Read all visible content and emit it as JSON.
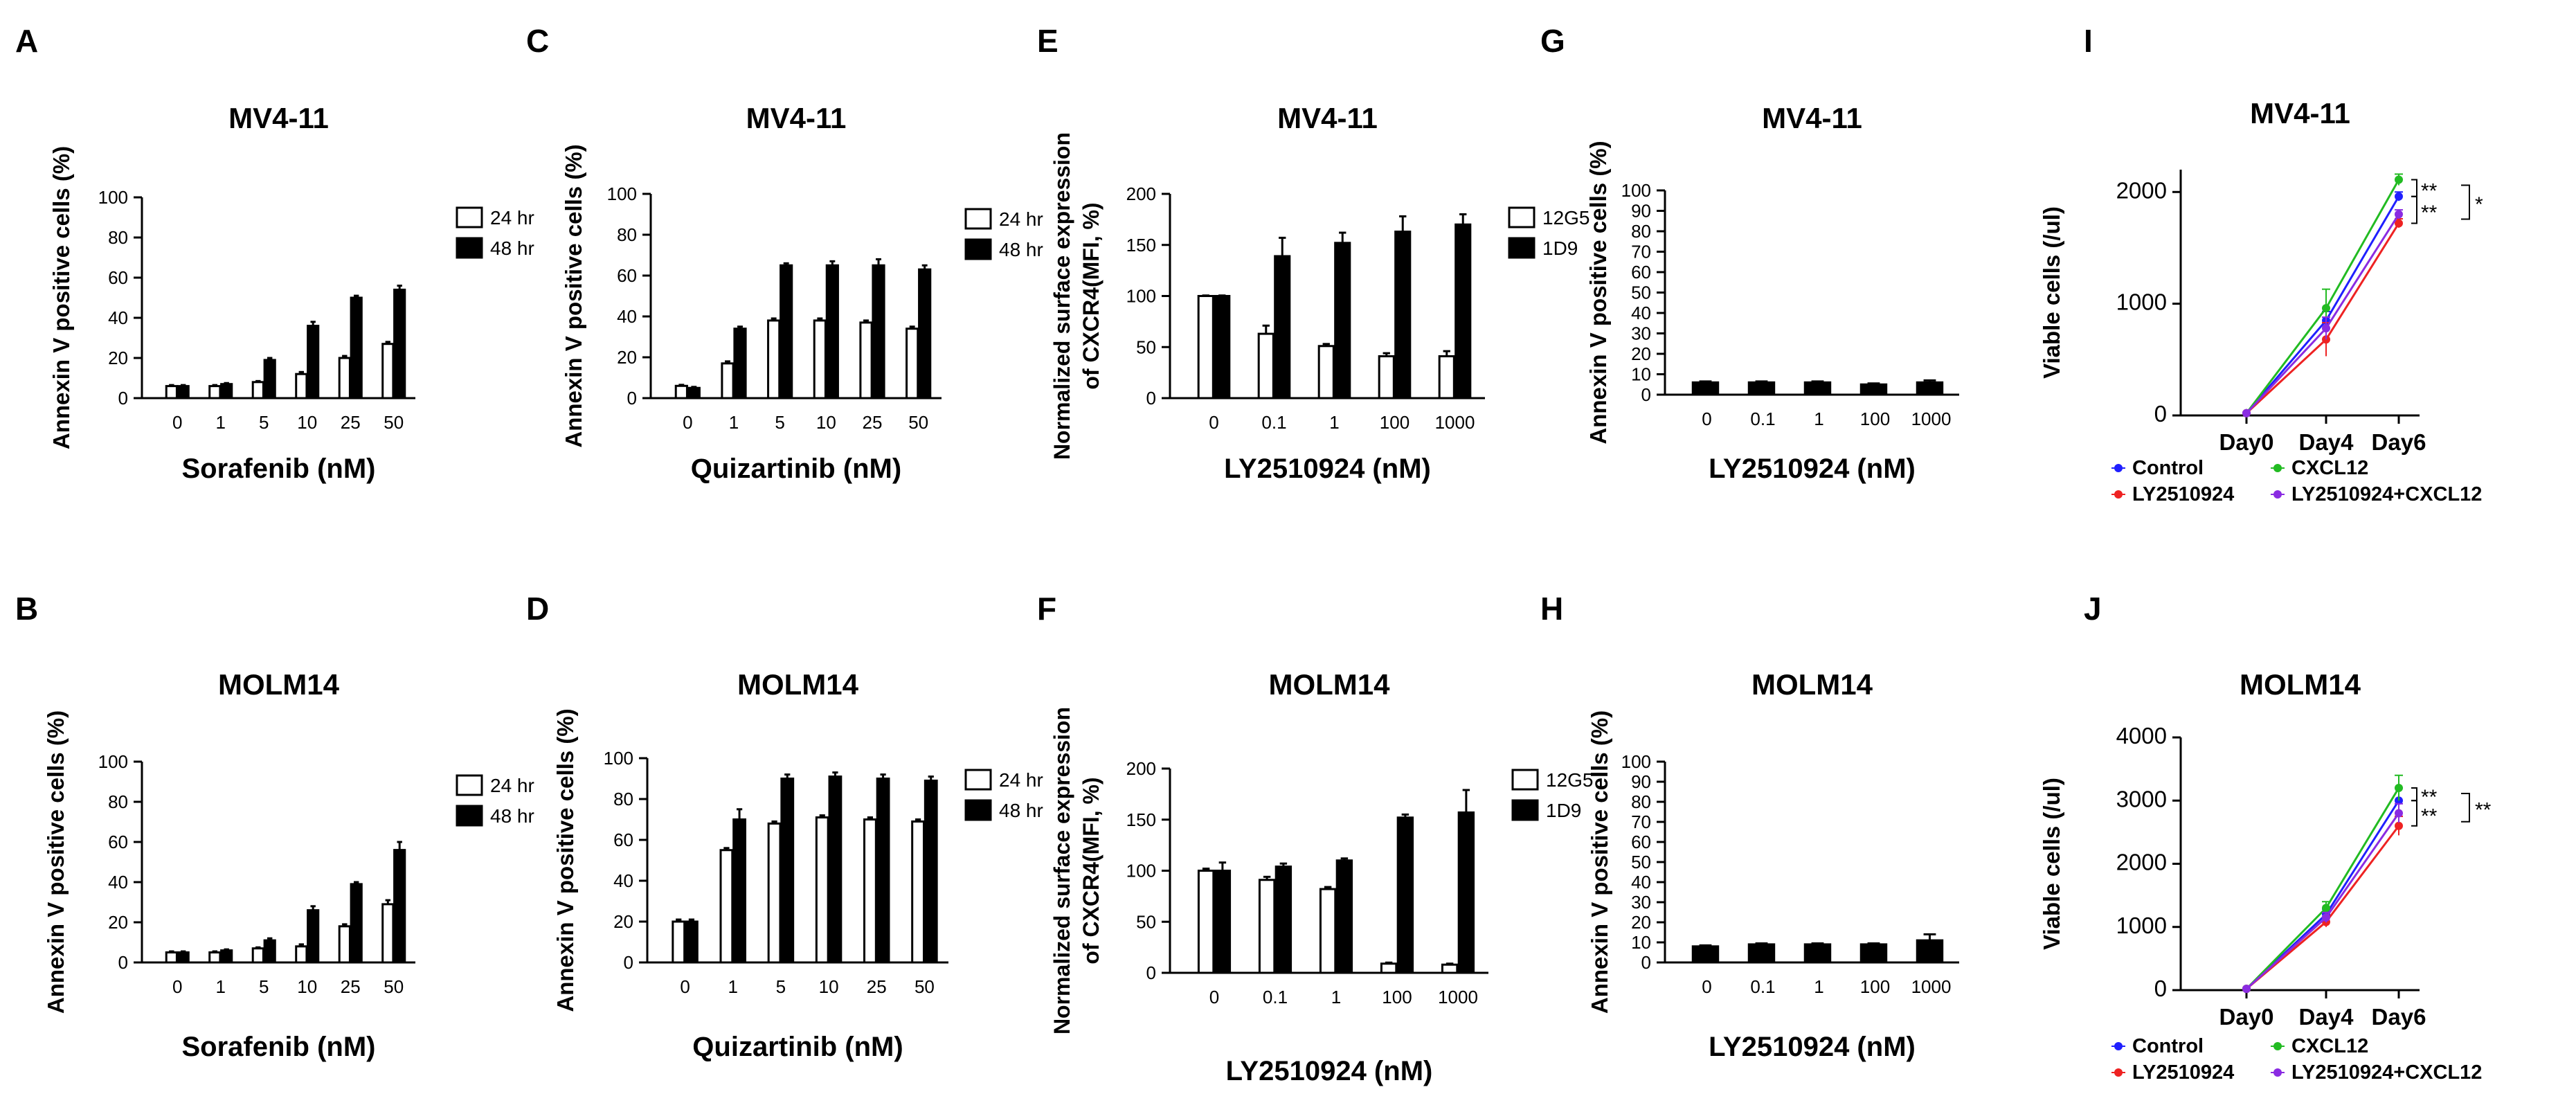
{
  "colors": {
    "ink": "#000000",
    "open_bar": "#ffffff",
    "filled_bar": "#000000",
    "control": "#1f1fff",
    "cxcl12": "#22bb22",
    "ly": "#ee2222",
    "combo": "#8a2be2"
  },
  "chart_data": [
    {
      "id": "A",
      "type": "bar",
      "title": "MV4-11",
      "xlabel": "Sorafenib (nM)",
      "ylabel": "Annexin V positive cells (%)",
      "ylim": [
        0,
        100
      ],
      "yticks": [
        0,
        20,
        40,
        60,
        80,
        100
      ],
      "categories": [
        "0",
        "1",
        "5",
        "10",
        "25",
        "50"
      ],
      "series": [
        {
          "name": "24 hr",
          "style": "open",
          "values": [
            6,
            6,
            8,
            12,
            20,
            27
          ],
          "errors": [
            0.5,
            0.5,
            0.5,
            1,
            1,
            1
          ]
        },
        {
          "name": "48 hr",
          "style": "filled",
          "values": [
            6,
            7,
            19,
            36,
            50,
            54
          ],
          "errors": [
            0.5,
            0.5,
            1,
            2,
            1,
            2
          ]
        }
      ]
    },
    {
      "id": "B",
      "type": "bar",
      "title": "MOLM14",
      "xlabel": "Sorafenib (nM)",
      "ylabel": "Annexin  V positive cells (%)",
      "ylim": [
        0,
        100
      ],
      "yticks": [
        0,
        20,
        40,
        60,
        80,
        100
      ],
      "categories": [
        "0",
        "1",
        "5",
        "10",
        "25",
        "50"
      ],
      "series": [
        {
          "name": "24 hr",
          "style": "open",
          "values": [
            5,
            5,
            7,
            8,
            18,
            29
          ],
          "errors": [
            0.5,
            0.5,
            0.5,
            1,
            1,
            2
          ]
        },
        {
          "name": "48 hr",
          "style": "filled",
          "values": [
            5,
            6,
            11,
            26,
            39,
            56
          ],
          "errors": [
            0.5,
            0.5,
            1,
            2,
            1,
            4
          ]
        }
      ]
    },
    {
      "id": "C",
      "type": "bar",
      "title": "MV4-11",
      "xlabel": "Quizartinib (nM)",
      "ylabel": "Annexin V positive cells (%)",
      "ylim": [
        0,
        100
      ],
      "yticks": [
        0,
        20,
        40,
        60,
        80,
        100
      ],
      "categories": [
        "0",
        "1",
        "5",
        "10",
        "25",
        "50"
      ],
      "series": [
        {
          "name": "24 hr",
          "style": "open",
          "values": [
            6,
            17,
            38,
            38,
            37,
            34
          ],
          "errors": [
            0.5,
            1,
            1,
            1,
            1,
            1
          ]
        },
        {
          "name": "48 hr",
          "style": "filled",
          "values": [
            5,
            34,
            65,
            65,
            65,
            63
          ],
          "errors": [
            0.5,
            1,
            1,
            2,
            3,
            2
          ]
        }
      ]
    },
    {
      "id": "D",
      "type": "bar",
      "title": "MOLM14",
      "xlabel": "Quizartinib (nM)",
      "ylabel": "Annexin V positive cells (%)",
      "ylim": [
        0,
        100
      ],
      "yticks": [
        0,
        20,
        40,
        60,
        80,
        100
      ],
      "categories": [
        "0",
        "1",
        "5",
        "10",
        "25",
        "50"
      ],
      "series": [
        {
          "name": "24 hr",
          "style": "open",
          "values": [
            20,
            55,
            68,
            71,
            70,
            69
          ],
          "errors": [
            1,
            1,
            1,
            1,
            1,
            1
          ]
        },
        {
          "name": "48 hr",
          "style": "filled",
          "values": [
            20,
            70,
            90,
            91,
            90,
            89
          ],
          "errors": [
            1,
            5,
            2,
            2,
            2,
            2
          ]
        }
      ]
    },
    {
      "id": "E",
      "type": "bar",
      "title": "MV4-11",
      "xlabel": "LY2510924 (nM)",
      "ylabel": "Normalized surface expression of CXCR4(MFI, %)",
      "ylabel_lines": [
        "Normalized surface expression",
        "of CXCR4(MFI, %)"
      ],
      "ylim": [
        0,
        200
      ],
      "yticks": [
        0,
        50,
        100,
        150,
        200
      ],
      "categories": [
        "0",
        "0.1",
        "1",
        "100",
        "1000"
      ],
      "series": [
        {
          "name": "12G5",
          "style": "open",
          "values": [
            100,
            63,
            51,
            41,
            41
          ],
          "errors": [
            0.5,
            8,
            2,
            3,
            5
          ]
        },
        {
          "name": "1D9",
          "style": "filled",
          "values": [
            100,
            139,
            152,
            163,
            170
          ],
          "errors": [
            0.5,
            18,
            10,
            15,
            10
          ]
        }
      ]
    },
    {
      "id": "F",
      "type": "bar",
      "title": "MOLM14",
      "xlabel": "LY2510924 (nM)",
      "ylabel": "Normalized surface expression of CXCR4(MFI, %)",
      "ylabel_lines": [
        "Normalized surface expression",
        "of CXCR4(MFI, %)"
      ],
      "ylim": [
        0,
        200
      ],
      "yticks": [
        0,
        50,
        100,
        150,
        200
      ],
      "categories": [
        "0",
        "0.1",
        "1",
        "100",
        "1000"
      ],
      "series": [
        {
          "name": "12G5",
          "style": "open",
          "values": [
            100,
            91,
            82,
            9,
            8
          ],
          "errors": [
            2,
            3,
            2,
            1,
            1
          ]
        },
        {
          "name": "1D9",
          "style": "filled",
          "values": [
            100,
            104,
            110,
            152,
            157
          ],
          "errors": [
            8,
            3,
            2,
            3,
            22
          ]
        }
      ]
    },
    {
      "id": "G",
      "type": "bar",
      "title": "MV4-11",
      "xlabel": "LY2510924 (nM)",
      "ylabel": "Annexin V positive cells (%)",
      "ylim": [
        0,
        100
      ],
      "yticks": [
        0,
        10,
        20,
        30,
        40,
        50,
        60,
        70,
        80,
        90,
        100
      ],
      "categories": [
        "0",
        "0.1",
        "1",
        "100",
        "1000"
      ],
      "series": [
        {
          "name": "",
          "style": "filled",
          "values": [
            6,
            6,
            6,
            5,
            6
          ],
          "errors": [
            0.5,
            0.5,
            0.5,
            0.5,
            1
          ]
        }
      ]
    },
    {
      "id": "H",
      "type": "bar",
      "title": "MOLM14",
      "xlabel": "LY2510924 (nM)",
      "ylabel": "Annexin V positive cells (%)",
      "ylim": [
        0,
        100
      ],
      "yticks": [
        0,
        10,
        20,
        30,
        40,
        50,
        60,
        70,
        80,
        90,
        100
      ],
      "categories": [
        "0",
        "0.1",
        "1",
        "100",
        "1000"
      ],
      "series": [
        {
          "name": "",
          "style": "filled",
          "values": [
            8,
            9,
            9,
            9,
            11
          ],
          "errors": [
            0.5,
            0.5,
            0.5,
            0.5,
            3
          ]
        }
      ]
    },
    {
      "id": "I",
      "type": "line",
      "title": "MV4-11",
      "xlabel": "",
      "ylabel": "Viable cells (/ul)",
      "ylim": [
        0,
        2200
      ],
      "yticks": [
        0,
        1000,
        2000
      ],
      "categories": [
        "Day0",
        "Day4",
        "Day6"
      ],
      "series": [
        {
          "name": "Control",
          "color": "#1f1fff",
          "values": [
            20,
            850,
            1960
          ],
          "errors": [
            5,
            80,
            40
          ]
        },
        {
          "name": "CXCL12",
          "color": "#22bb22",
          "values": [
            20,
            960,
            2110
          ],
          "errors": [
            5,
            170,
            50
          ]
        },
        {
          "name": "LY2510924",
          "color": "#ee2222",
          "values": [
            20,
            680,
            1720
          ],
          "errors": [
            5,
            150,
            40
          ]
        },
        {
          "name": "LY2510924+CXCL12",
          "color": "#8a2be2",
          "values": [
            20,
            780,
            1800
          ],
          "errors": [
            5,
            100,
            40
          ]
        }
      ],
      "annotations": [
        "**",
        "**",
        "*"
      ]
    },
    {
      "id": "J",
      "type": "line",
      "title": "MOLM14",
      "xlabel": "",
      "ylabel": "Viable cells (/ul)",
      "ylim": [
        0,
        4000
      ],
      "yticks": [
        0,
        1000,
        2000,
        3000,
        4000
      ],
      "categories": [
        "Day0",
        "Day4",
        "Day6"
      ],
      "series": [
        {
          "name": "Control",
          "color": "#1f1fff",
          "values": [
            20,
            1200,
            3000
          ],
          "errors": [
            5,
            80,
            200
          ]
        },
        {
          "name": "CXCL12",
          "color": "#22bb22",
          "values": [
            20,
            1300,
            3200
          ],
          "errors": [
            5,
            100,
            200
          ]
        },
        {
          "name": "LY2510924",
          "color": "#ee2222",
          "values": [
            20,
            1080,
            2600
          ],
          "errors": [
            5,
            80,
            150
          ]
        },
        {
          "name": "LY2510924+CXCL12",
          "color": "#8a2be2",
          "values": [
            20,
            1150,
            2800
          ],
          "errors": [
            5,
            80,
            150
          ]
        }
      ],
      "annotations": [
        "**",
        "**",
        "**"
      ]
    }
  ]
}
